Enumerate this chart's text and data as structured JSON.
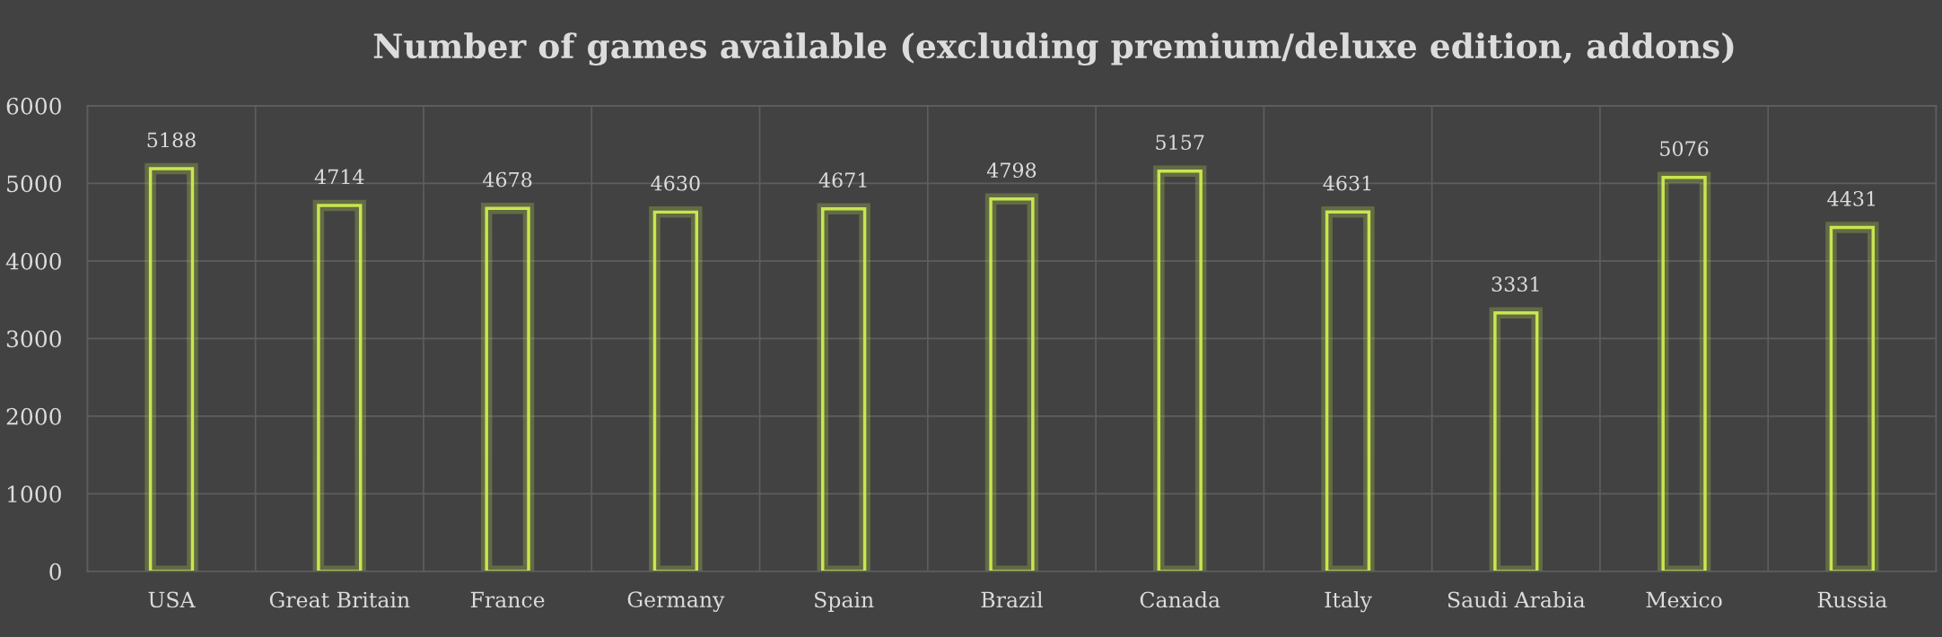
{
  "chart_data": {
    "type": "bar",
    "title": "Number of games available (excluding premium/deluxe edition, addons)",
    "categories": [
      "USA",
      "Great Britain",
      "France",
      "Germany",
      "Spain",
      "Brazil",
      "Canada",
      "Italy",
      "Saudi Arabia",
      "Mexico",
      "Russia"
    ],
    "values": [
      5188,
      4714,
      4678,
      4630,
      4671,
      4798,
      5157,
      4631,
      3331,
      5076,
      4431
    ],
    "color": "#c8e650",
    "ylim": [
      0,
      6000
    ],
    "yticks": [
      0,
      1000,
      2000,
      3000,
      4000,
      5000,
      6000
    ],
    "grid": true,
    "data_labels": true
  }
}
